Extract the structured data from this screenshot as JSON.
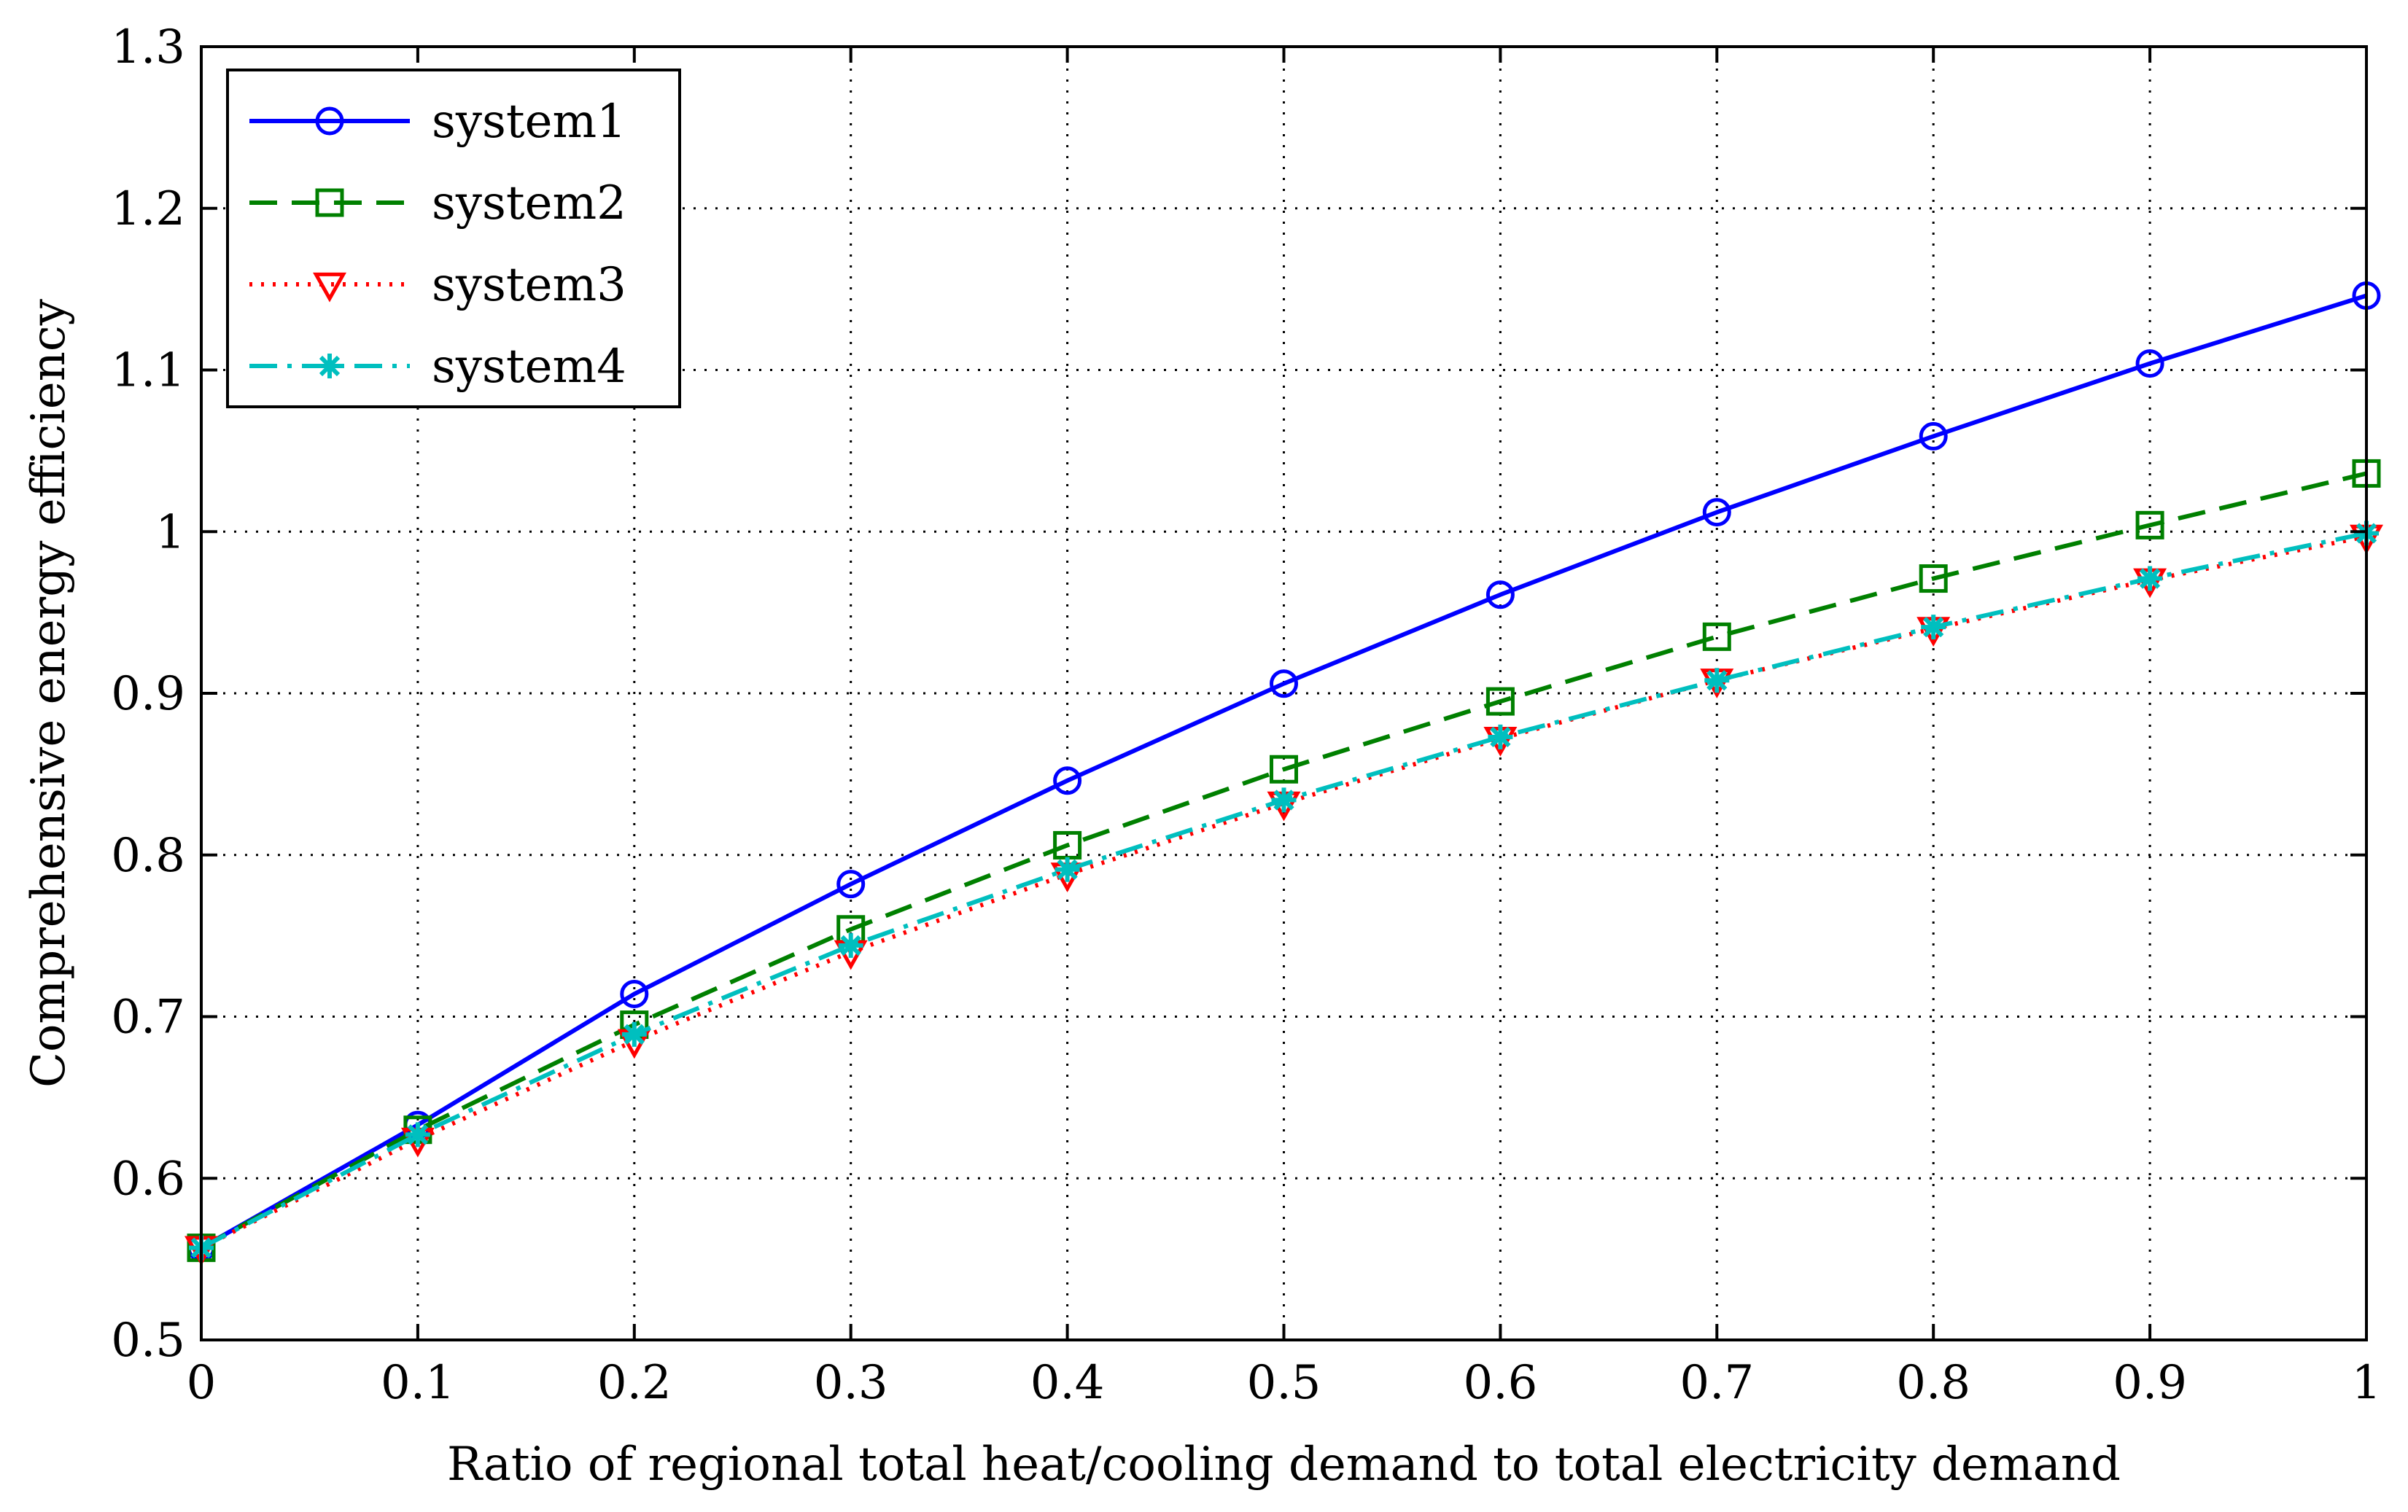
{
  "chart_data": {
    "type": "line",
    "title": "",
    "xlabel": "Ratio of regional total heat/cooling demand to total electricity demand",
    "ylabel": "Comprehensive energy efficiency",
    "xlim": [
      0,
      1
    ],
    "ylim": [
      0.5,
      1.3
    ],
    "grid": true,
    "legend_position": "top-left",
    "x": [
      0,
      0.1,
      0.2,
      0.3,
      0.4,
      0.5,
      0.6,
      0.7,
      0.8,
      0.9,
      1.0
    ],
    "x_tick_labels": [
      "0",
      "0.1",
      "0.2",
      "0.3",
      "0.4",
      "0.5",
      "0.6",
      "0.7",
      "0.8",
      "0.9",
      "1"
    ],
    "x_ticks": [
      0,
      0.1,
      0.2,
      0.3,
      0.4,
      0.5,
      0.6,
      0.7,
      0.8,
      0.9,
      1.0
    ],
    "y_tick_labels": [
      "0.5",
      "0.6",
      "0.7",
      "0.8",
      "0.9",
      "1",
      "1.1",
      "1.2",
      "1.3"
    ],
    "y_ticks": [
      0.5,
      0.6,
      0.7,
      0.8,
      0.9,
      1.0,
      1.1,
      1.2,
      1.3
    ],
    "series": [
      {
        "name": "system1",
        "color": "#0000ff",
        "line_style": "solid",
        "marker": "circle",
        "values": [
          0.557,
          0.633,
          0.714,
          0.782,
          0.846,
          0.906,
          0.961,
          1.012,
          1.059,
          1.104,
          1.146
        ]
      },
      {
        "name": "system2",
        "color": "#008000",
        "line_style": "dashed",
        "marker": "square",
        "values": [
          0.557,
          0.63,
          0.695,
          0.754,
          0.806,
          0.853,
          0.895,
          0.935,
          0.971,
          1.004,
          1.036
        ]
      },
      {
        "name": "system3",
        "color": "#ff0000",
        "line_style": "dotted",
        "marker": "triangle-down",
        "values": [
          0.557,
          0.624,
          0.685,
          0.74,
          0.788,
          0.832,
          0.872,
          0.908,
          0.94,
          0.97,
          0.997
        ]
      },
      {
        "name": "system4",
        "color": "#00bfbf",
        "line_style": "dashdot",
        "marker": "star",
        "values": [
          0.557,
          0.627,
          0.689,
          0.744,
          0.791,
          0.834,
          0.873,
          0.908,
          0.941,
          0.971,
          0.999
        ]
      }
    ]
  }
}
